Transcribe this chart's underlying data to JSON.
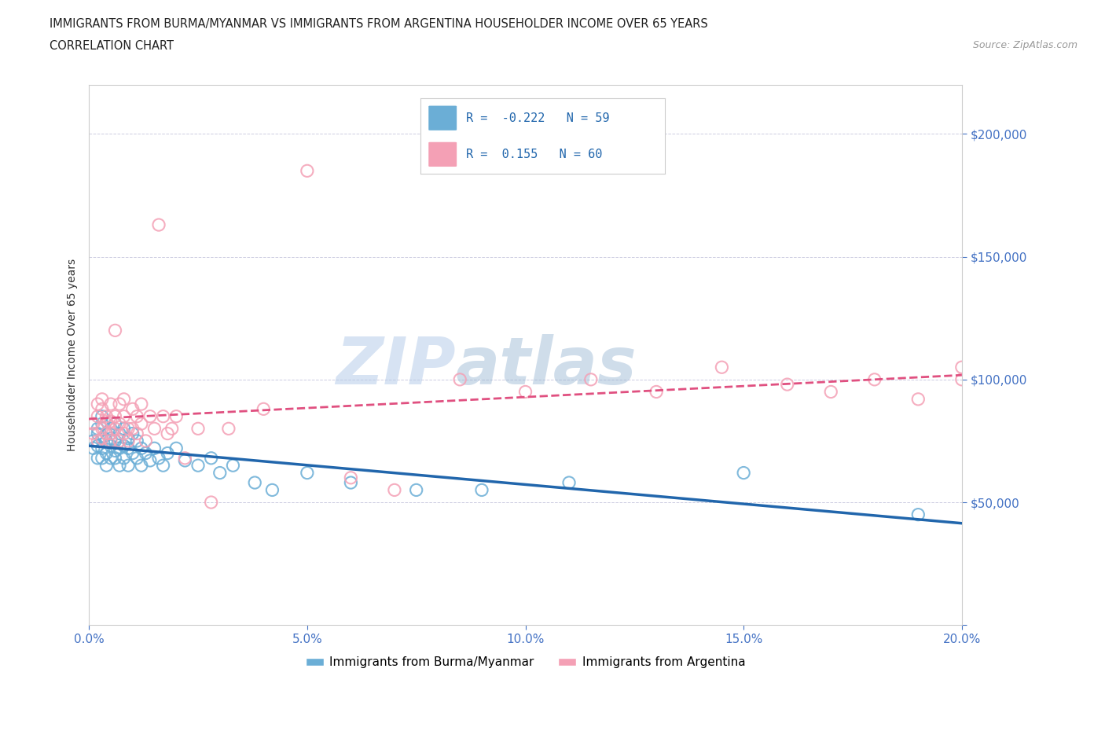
{
  "title_line1": "IMMIGRANTS FROM BURMA/MYANMAR VS IMMIGRANTS FROM ARGENTINA HOUSEHOLDER INCOME OVER 65 YEARS",
  "title_line2": "CORRELATION CHART",
  "source_text": "Source: ZipAtlas.com",
  "ylabel": "Householder Income Over 65 years",
  "watermark_zip": "ZIP",
  "watermark_atlas": "atlas",
  "xlim": [
    0.0,
    0.2
  ],
  "ylim": [
    0,
    220000
  ],
  "yticks": [
    0,
    50000,
    100000,
    150000,
    200000
  ],
  "ytick_labels": [
    "",
    "$50,000",
    "$100,000",
    "$150,000",
    "$200,000"
  ],
  "xticks": [
    0.0,
    0.05,
    0.1,
    0.15,
    0.2
  ],
  "xtick_labels": [
    "0.0%",
    "5.0%",
    "10.0%",
    "15.0%",
    "20.0%"
  ],
  "burma_color": "#6baed6",
  "argentina_color": "#f4a0b5",
  "burma_line_color": "#2166ac",
  "argentina_line_color": "#e05080",
  "burma_R": -0.222,
  "burma_N": 59,
  "argentina_R": 0.155,
  "argentina_N": 60,
  "legend_label_burma": "Immigrants from Burma/Myanmar",
  "legend_label_argentina": "Immigrants from Argentina",
  "tick_color": "#4472c4",
  "burma_scatter_x": [
    0.001,
    0.001,
    0.002,
    0.002,
    0.002,
    0.002,
    0.003,
    0.003,
    0.003,
    0.003,
    0.003,
    0.004,
    0.004,
    0.004,
    0.004,
    0.005,
    0.005,
    0.005,
    0.005,
    0.006,
    0.006,
    0.006,
    0.006,
    0.007,
    0.007,
    0.007,
    0.008,
    0.008,
    0.008,
    0.009,
    0.009,
    0.009,
    0.01,
    0.01,
    0.011,
    0.011,
    0.012,
    0.012,
    0.013,
    0.014,
    0.015,
    0.016,
    0.017,
    0.018,
    0.02,
    0.022,
    0.025,
    0.028,
    0.03,
    0.033,
    0.038,
    0.042,
    0.05,
    0.06,
    0.075,
    0.09,
    0.11,
    0.15,
    0.19
  ],
  "burma_scatter_y": [
    75000,
    72000,
    80000,
    73000,
    78000,
    68000,
    85000,
    76000,
    72000,
    68000,
    82000,
    75000,
    70000,
    78000,
    65000,
    80000,
    73000,
    68000,
    76000,
    82000,
    71000,
    75000,
    68000,
    78000,
    72000,
    65000,
    80000,
    73000,
    68000,
    76000,
    72000,
    65000,
    78000,
    70000,
    75000,
    68000,
    72000,
    65000,
    70000,
    67000,
    72000,
    68000,
    65000,
    70000,
    72000,
    67000,
    65000,
    68000,
    62000,
    65000,
    58000,
    55000,
    62000,
    58000,
    55000,
    55000,
    58000,
    62000,
    45000
  ],
  "argentina_scatter_x": [
    0.001,
    0.001,
    0.002,
    0.002,
    0.002,
    0.003,
    0.003,
    0.003,
    0.003,
    0.004,
    0.004,
    0.004,
    0.005,
    0.005,
    0.005,
    0.005,
    0.006,
    0.006,
    0.006,
    0.007,
    0.007,
    0.007,
    0.008,
    0.008,
    0.008,
    0.009,
    0.009,
    0.01,
    0.01,
    0.011,
    0.011,
    0.012,
    0.012,
    0.013,
    0.014,
    0.015,
    0.016,
    0.017,
    0.018,
    0.019,
    0.02,
    0.022,
    0.025,
    0.028,
    0.032,
    0.04,
    0.05,
    0.06,
    0.07,
    0.085,
    0.1,
    0.115,
    0.13,
    0.145,
    0.16,
    0.17,
    0.18,
    0.19,
    0.2,
    0.2
  ],
  "argentina_scatter_y": [
    78000,
    82000,
    85000,
    75000,
    90000,
    88000,
    80000,
    76000,
    92000,
    83000,
    78000,
    85000,
    90000,
    75000,
    83000,
    78000,
    120000,
    85000,
    80000,
    90000,
    82000,
    75000,
    85000,
    78000,
    92000,
    80000,
    75000,
    88000,
    80000,
    85000,
    78000,
    90000,
    82000,
    75000,
    85000,
    80000,
    163000,
    85000,
    78000,
    80000,
    85000,
    68000,
    80000,
    50000,
    80000,
    88000,
    185000,
    60000,
    55000,
    100000,
    95000,
    100000,
    95000,
    105000,
    98000,
    95000,
    100000,
    92000,
    105000,
    100000
  ]
}
